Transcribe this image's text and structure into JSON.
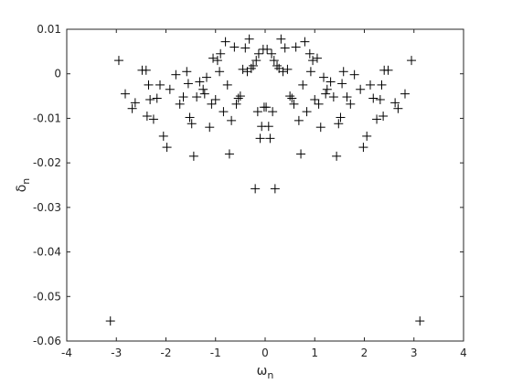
{
  "chart_data": {
    "type": "scatter",
    "title": "",
    "xlabel": {
      "base": "ω",
      "sub": "n"
    },
    "ylabel": {
      "base": "δ",
      "sub": "n"
    },
    "xlim": [
      -4,
      4
    ],
    "ylim": [
      -0.06,
      0.01
    ],
    "xticks": [
      -4,
      -3,
      -2,
      -1,
      0,
      1,
      2,
      3,
      4
    ],
    "yticks": [
      -0.06,
      -0.05,
      -0.04,
      -0.03,
      -0.02,
      -0.01,
      0,
      0.01
    ],
    "xtick_labels": [
      "-4",
      "-3",
      "-2",
      "-1",
      "0",
      "1",
      "2",
      "3",
      "4"
    ],
    "ytick_labels": [
      "-0.06",
      "-0.05",
      "-0.04",
      "-0.03",
      "-0.02",
      "-0.01",
      "0",
      "0.01"
    ],
    "grid": false,
    "legend": "none",
    "marker": "+",
    "marker_color": "#000000",
    "axis_color": "#262626",
    "points": [
      [
        -3.12,
        -0.0555
      ],
      [
        3.12,
        -0.0555
      ],
      [
        -2.95,
        0.003
      ],
      [
        2.95,
        0.003
      ],
      [
        -2.82,
        -0.0045
      ],
      [
        2.82,
        -0.0045
      ],
      [
        -2.68,
        -0.0078
      ],
      [
        2.68,
        -0.0078
      ],
      [
        -2.62,
        -0.0065
      ],
      [
        2.62,
        -0.0065
      ],
      [
        -2.48,
        0.0008
      ],
      [
        2.48,
        0.0008
      ],
      [
        -2.4,
        0.0008
      ],
      [
        2.4,
        0.0008
      ],
      [
        -2.38,
        -0.0095
      ],
      [
        2.38,
        -0.0095
      ],
      [
        -2.35,
        -0.0025
      ],
      [
        2.35,
        -0.0025
      ],
      [
        -2.32,
        -0.0058
      ],
      [
        2.32,
        -0.0058
      ],
      [
        -2.25,
        -0.0102
      ],
      [
        2.25,
        -0.0102
      ],
      [
        -2.18,
        -0.0055
      ],
      [
        2.18,
        -0.0055
      ],
      [
        -2.12,
        -0.0025
      ],
      [
        2.12,
        -0.0025
      ],
      [
        -2.05,
        -0.014
      ],
      [
        2.05,
        -0.014
      ],
      [
        -1.98,
        -0.0165
      ],
      [
        1.98,
        -0.0165
      ],
      [
        -1.92,
        -0.0035
      ],
      [
        1.92,
        -0.0035
      ],
      [
        -1.8,
        -0.0002
      ],
      [
        1.8,
        -0.0002
      ],
      [
        -1.72,
        -0.0068
      ],
      [
        1.72,
        -0.0068
      ],
      [
        -1.65,
        -0.0052
      ],
      [
        1.65,
        -0.0052
      ],
      [
        -1.58,
        0.0005
      ],
      [
        1.58,
        0.0005
      ],
      [
        -1.55,
        -0.0022
      ],
      [
        1.55,
        -0.0022
      ],
      [
        -1.52,
        -0.0098
      ],
      [
        1.52,
        -0.0098
      ],
      [
        -1.48,
        -0.0112
      ],
      [
        1.48,
        -0.0112
      ],
      [
        -1.44,
        -0.0185
      ],
      [
        1.44,
        -0.0185
      ],
      [
        -1.38,
        -0.0052
      ],
      [
        1.38,
        -0.0052
      ],
      [
        -1.32,
        -0.0018
      ],
      [
        1.32,
        -0.0018
      ],
      [
        -1.25,
        -0.0035
      ],
      [
        1.25,
        -0.0035
      ],
      [
        -1.22,
        -0.0045
      ],
      [
        1.22,
        -0.0045
      ],
      [
        -1.18,
        -0.0008
      ],
      [
        1.18,
        -0.0008
      ],
      [
        -1.12,
        -0.012
      ],
      [
        1.12,
        -0.012
      ],
      [
        -1.08,
        -0.0068
      ],
      [
        1.08,
        -0.0068
      ],
      [
        -1.05,
        0.0035
      ],
      [
        1.05,
        0.0035
      ],
      [
        -1.0,
        -0.0058
      ],
      [
        1.0,
        -0.0058
      ],
      [
        -0.96,
        0.003
      ],
      [
        0.96,
        0.003
      ],
      [
        -0.92,
        0.0005
      ],
      [
        0.92,
        0.0005
      ],
      [
        -0.9,
        0.0045
      ],
      [
        0.9,
        0.0045
      ],
      [
        -0.84,
        -0.0085
      ],
      [
        0.84,
        -0.0085
      ],
      [
        -0.8,
        0.0072
      ],
      [
        0.8,
        0.0072
      ],
      [
        -0.76,
        -0.0025
      ],
      [
        0.76,
        -0.0025
      ],
      [
        -0.72,
        -0.018
      ],
      [
        0.72,
        -0.018
      ],
      [
        -0.68,
        -0.0105
      ],
      [
        0.68,
        -0.0105
      ],
      [
        -0.62,
        0.006
      ],
      [
        0.62,
        0.006
      ],
      [
        -0.58,
        -0.0068
      ],
      [
        0.58,
        -0.0068
      ],
      [
        -0.54,
        -0.0055
      ],
      [
        0.54,
        -0.0055
      ],
      [
        -0.5,
        -0.005
      ],
      [
        0.5,
        -0.005
      ],
      [
        -0.45,
        0.001
      ],
      [
        0.45,
        0.001
      ],
      [
        -0.4,
        0.0058
      ],
      [
        0.4,
        0.0058
      ],
      [
        -0.36,
        0.0005
      ],
      [
        0.36,
        0.0005
      ],
      [
        -0.32,
        0.0078
      ],
      [
        0.32,
        0.0078
      ],
      [
        -0.28,
        0.0012
      ],
      [
        0.28,
        0.0012
      ],
      [
        -0.24,
        0.0018
      ],
      [
        0.24,
        0.0018
      ],
      [
        -0.2,
        -0.0258
      ],
      [
        0.2,
        -0.0258
      ],
      [
        -0.18,
        0.003
      ],
      [
        0.18,
        0.003
      ],
      [
        -0.15,
        -0.0085
      ],
      [
        0.15,
        -0.0085
      ],
      [
        -0.13,
        0.0045
      ],
      [
        0.13,
        0.0045
      ],
      [
        -0.1,
        -0.0145
      ],
      [
        0.1,
        -0.0145
      ],
      [
        -0.07,
        -0.0118
      ],
      [
        0.07,
        -0.0118
      ],
      [
        -0.04,
        0.0055
      ],
      [
        0.04,
        0.0055
      ],
      [
        -0.02,
        -0.0075
      ],
      [
        0.02,
        -0.0075
      ]
    ]
  }
}
